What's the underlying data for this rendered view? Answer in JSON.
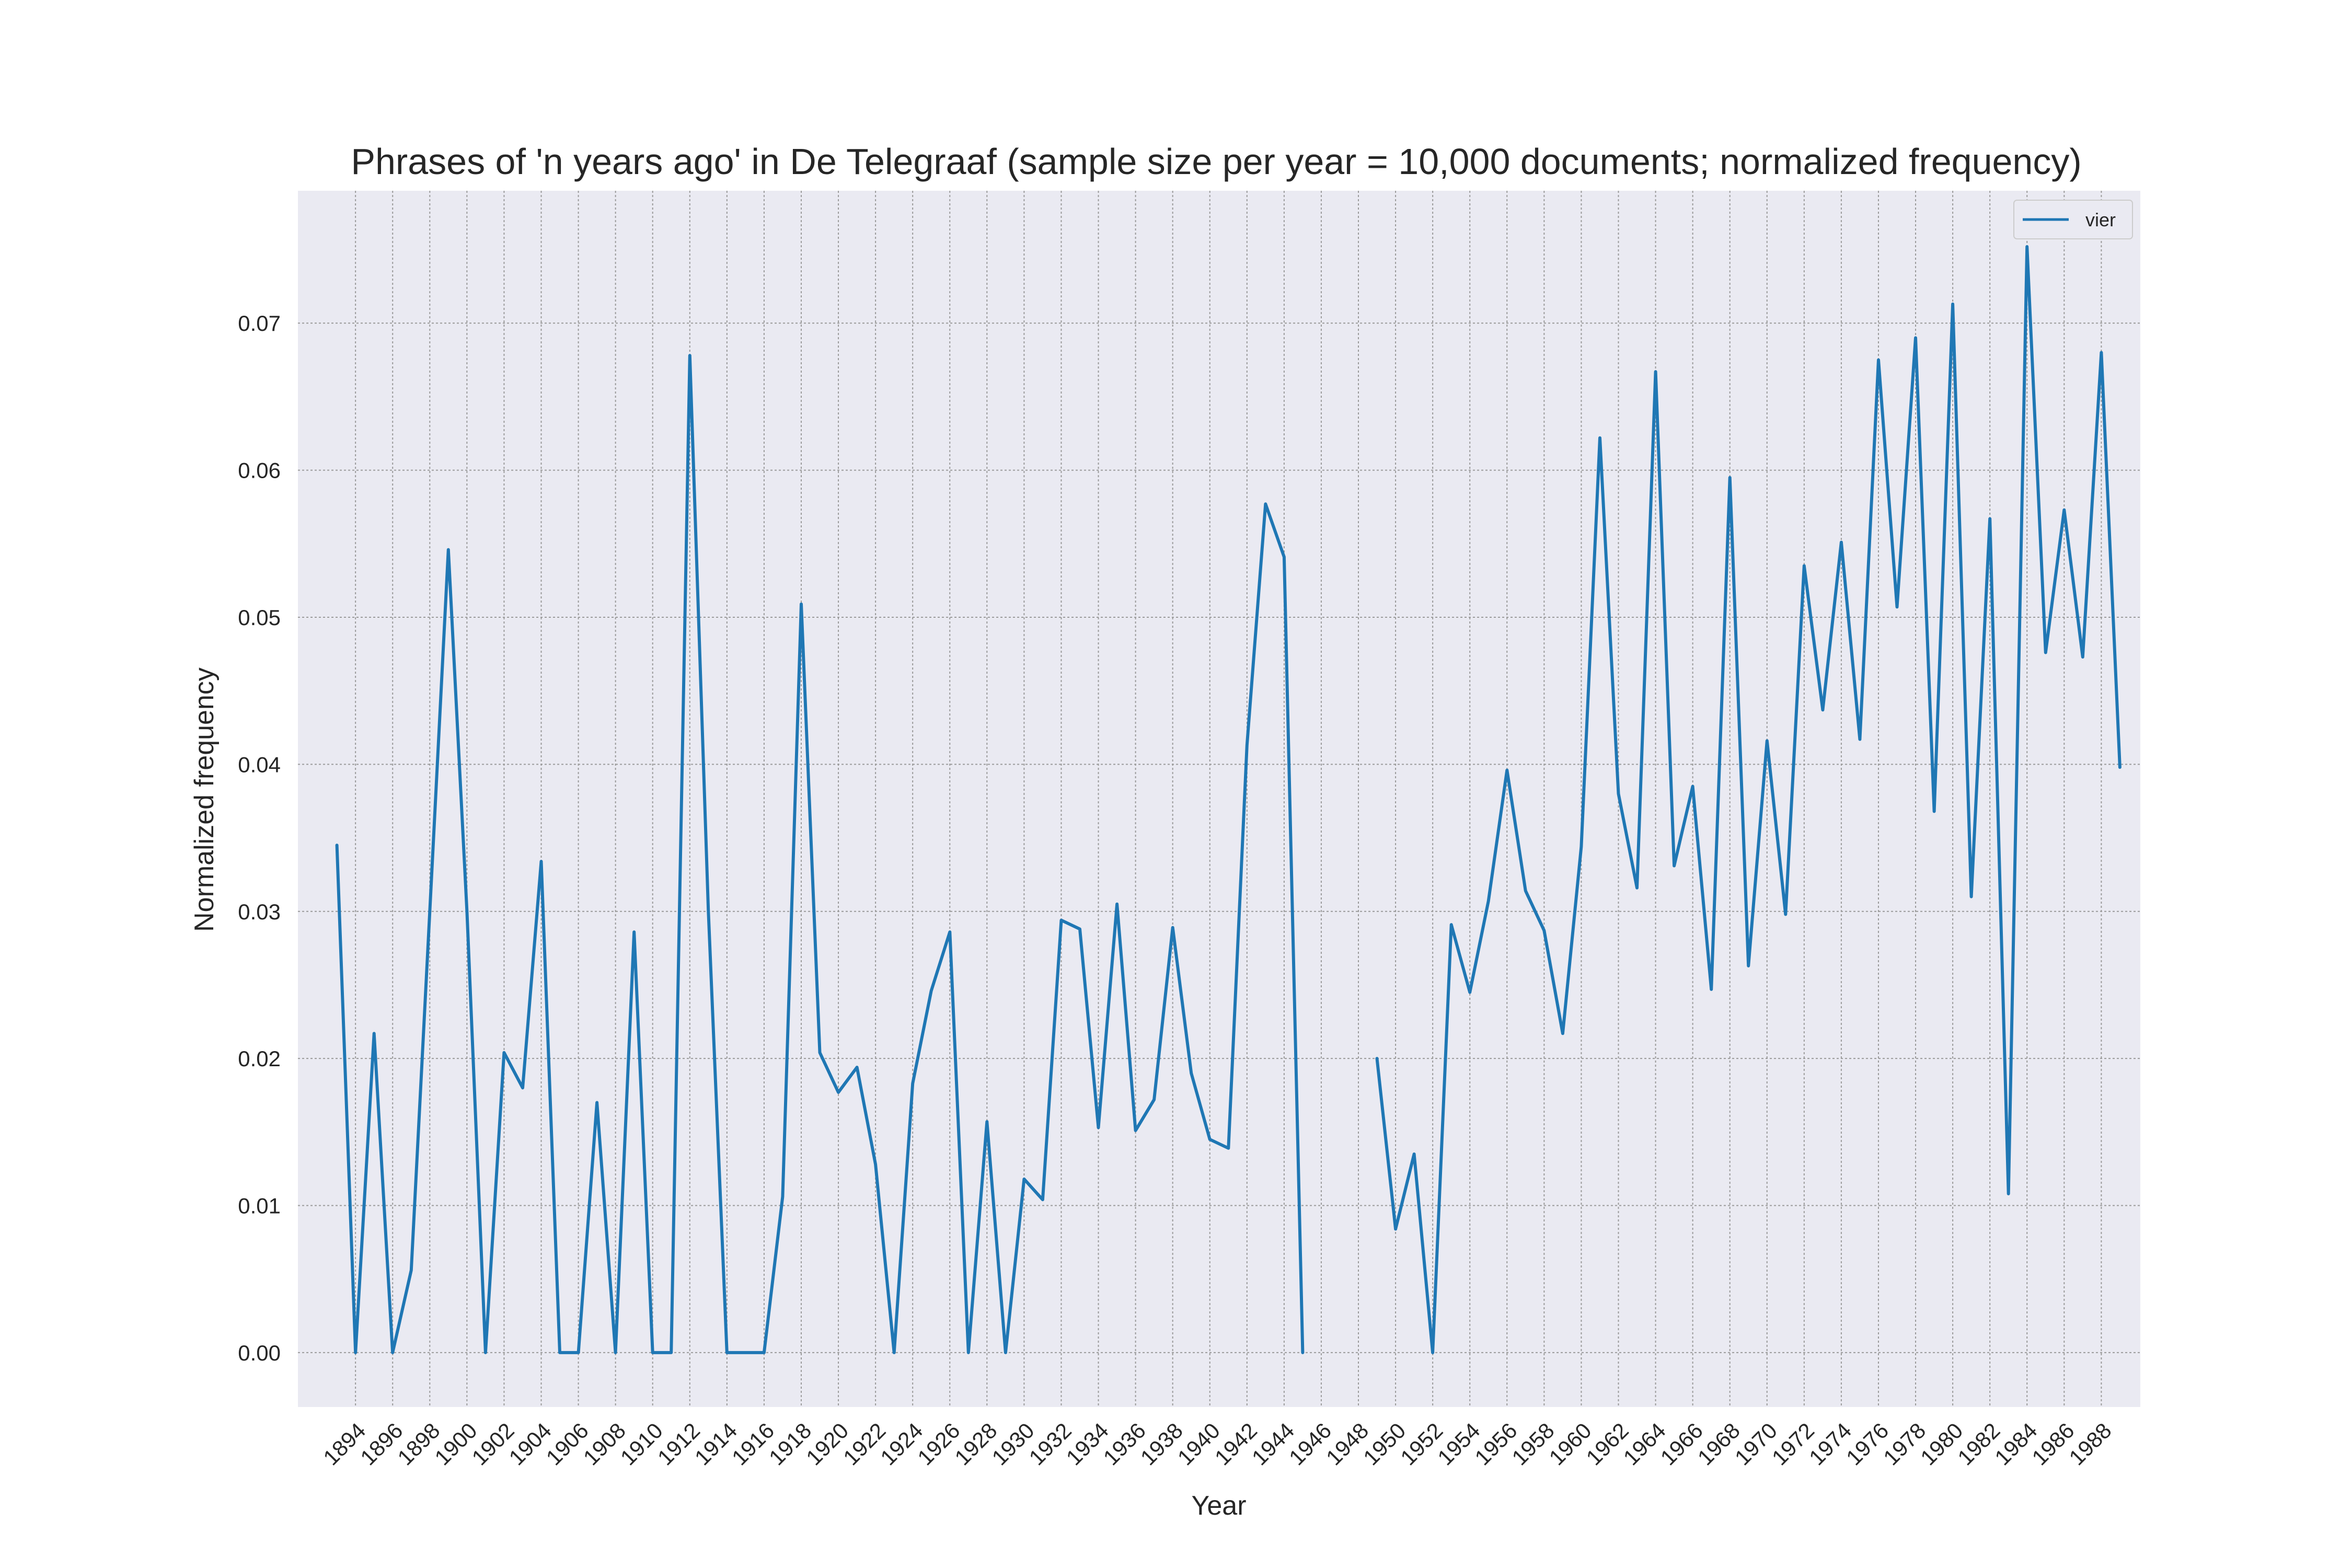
{
  "chart_data": {
    "type": "line",
    "title": "Phrases of 'n years ago' in De Telegraaf (sample size per year = 10,000 documents; normalized frequency)",
    "xlabel": "Year",
    "ylabel": "Normalized frequency",
    "xlim": [
      1890.9,
      1990.1
    ],
    "ylim": [
      -0.0037,
      0.079
    ],
    "x_ticks": [
      1894,
      1896,
      1898,
      1900,
      1902,
      1904,
      1906,
      1908,
      1910,
      1912,
      1914,
      1916,
      1918,
      1920,
      1922,
      1924,
      1926,
      1928,
      1930,
      1932,
      1934,
      1936,
      1938,
      1940,
      1942,
      1944,
      1946,
      1948,
      1950,
      1952,
      1954,
      1956,
      1958,
      1960,
      1962,
      1964,
      1966,
      1968,
      1970,
      1972,
      1974,
      1976,
      1978,
      1980,
      1982,
      1984,
      1986,
      1988
    ],
    "y_ticks": [
      "0.00",
      "0.01",
      "0.02",
      "0.03",
      "0.04",
      "0.05",
      "0.06",
      "0.07"
    ],
    "grid": true,
    "legend_position": "top-right",
    "background": "#eaeaf2",
    "series": [
      {
        "name": "vier",
        "color": "#1f77b4",
        "x": [
          1893,
          1894,
          1895,
          1896,
          1897,
          1898,
          1899,
          1900,
          1901,
          1902,
          1903,
          1904,
          1905,
          1906,
          1907,
          1908,
          1909,
          1910,
          1911,
          1912,
          1913,
          1914,
          1915,
          1916,
          1917,
          1918,
          1919,
          1920,
          1921,
          1922,
          1923,
          1924,
          1925,
          1926,
          1927,
          1928,
          1929,
          1930,
          1931,
          1932,
          1933,
          1934,
          1935,
          1936,
          1937,
          1938,
          1939,
          1940,
          1941,
          1942,
          1943,
          1944,
          1945,
          1946,
          1947,
          1948,
          1949,
          1950,
          1951,
          1952,
          1953,
          1954,
          1955,
          1956,
          1957,
          1958,
          1959,
          1960,
          1961,
          1962,
          1963,
          1964,
          1965,
          1966,
          1967,
          1968,
          1969,
          1970,
          1971,
          1972,
          1973,
          1974,
          1975,
          1976,
          1977,
          1978,
          1979,
          1980,
          1981,
          1982,
          1983,
          1984,
          1985,
          1986,
          1987,
          1988,
          1989
        ],
        "y": [
          0.0345,
          0.0,
          0.0217,
          0.0,
          0.0056,
          0.03,
          0.0546,
          0.03,
          0.0,
          0.0204,
          0.018,
          0.0334,
          0.0,
          0.0,
          0.017,
          0.0,
          0.0286,
          0.0,
          0.0,
          0.0678,
          0.03,
          0.0,
          0.0,
          0.0,
          0.0106,
          0.0509,
          0.0204,
          0.0177,
          0.0194,
          0.0128,
          0.0,
          0.0183,
          0.0246,
          0.0286,
          0.0,
          0.0157,
          0.0,
          0.0118,
          0.0104,
          0.0294,
          0.0288,
          0.0153,
          0.0305,
          0.0151,
          0.0172,
          0.0289,
          0.019,
          0.0145,
          0.0139,
          0.0413,
          0.0577,
          0.0541,
          0.0,
          null,
          null,
          null,
          0.02,
          0.0084,
          0.0135,
          0.0,
          0.0291,
          0.0245,
          0.0307,
          0.0396,
          0.0314,
          0.0287,
          0.0217,
          0.0344,
          0.0622,
          0.038,
          0.0316,
          0.0667,
          0.0331,
          0.0385,
          0.0247,
          0.0595,
          0.0263,
          0.0416,
          0.0298,
          0.0535,
          0.0437,
          0.0551,
          0.0417,
          0.0675,
          0.0507,
          0.069,
          0.0368,
          0.0713,
          0.031,
          0.0567,
          0.0108,
          0.0752,
          0.0476,
          0.0573,
          0.0473,
          0.068,
          0.0398
        ]
      }
    ]
  }
}
